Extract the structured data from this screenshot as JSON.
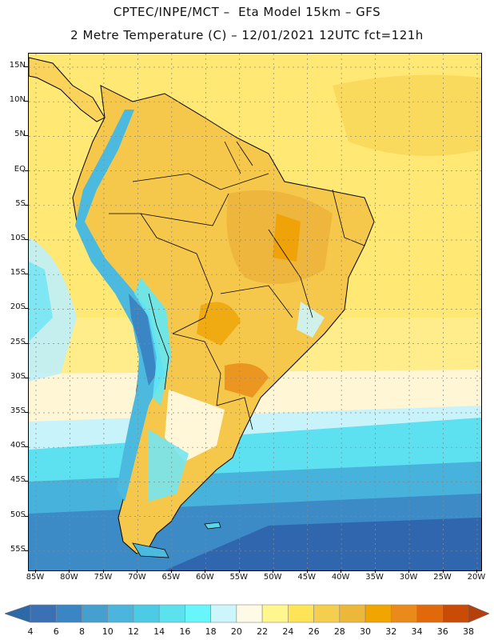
{
  "title_line1": "CPTEC/INPE/MCT –  Eta Model 15km – GFS",
  "title_line2": "2 Metre Temperature (C) – 12/01/2021 12UTC fct=121h",
  "lat_labels": [
    "15N",
    "10N",
    "5N",
    "EQ",
    "5S",
    "10S",
    "15S",
    "20S",
    "25S",
    "30S",
    "35S",
    "40S",
    "45S",
    "50S",
    "55S"
  ],
  "lon_labels": [
    "85W",
    "80W",
    "75W",
    "70W",
    "65W",
    "60W",
    "55W",
    "50W",
    "45W",
    "40W",
    "35W",
    "30W",
    "25W",
    "20W"
  ],
  "colorbar": {
    "labels": [
      "4",
      "6",
      "8",
      "10",
      "12",
      "14",
      "16",
      "18",
      "20",
      "22",
      "24",
      "26",
      "28",
      "30",
      "32",
      "34",
      "36",
      "38"
    ],
    "colors": [
      "#3b71b4",
      "#3a85c3",
      "#45a0cf",
      "#4cb5de",
      "#4ccbe6",
      "#5ce2ef",
      "#66f6fb",
      "#ccf5fc",
      "#fffae6",
      "#fff68e",
      "#ffe457",
      "#f6ce4d",
      "#edb83a",
      "#f0a500",
      "#ea8a1a",
      "#e2690a",
      "#c94b06"
    ],
    "low_arrow": "#2c6aa7",
    "high_arrow": "#b5400a"
  }
}
